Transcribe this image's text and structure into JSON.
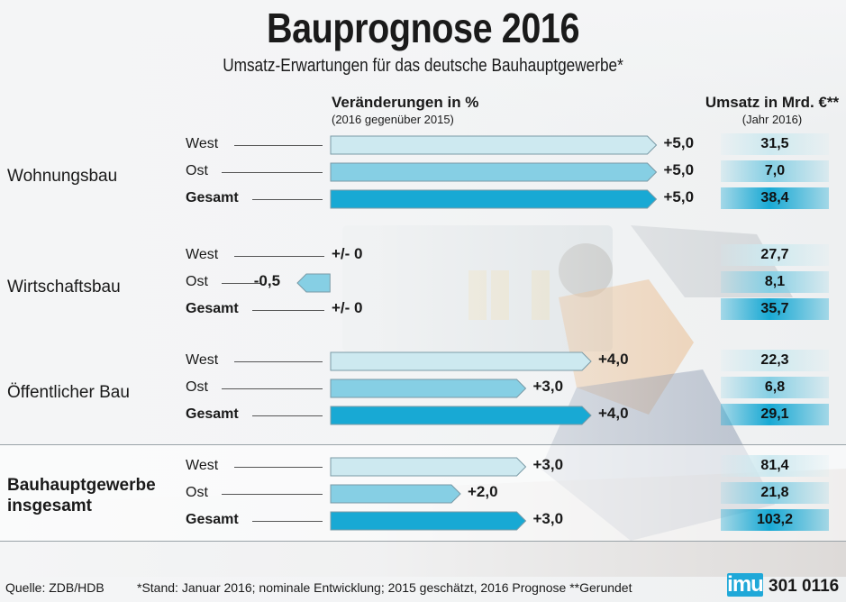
{
  "title": "Bauprognose 2016",
  "subtitle": "Umsatz-Erwartungen für das deutsche Bauhauptgewerbe*",
  "header_left": {
    "line1": "Veränderungen in %",
    "line2": "(2016 gegenüber 2015)"
  },
  "header_right": {
    "line1": "Umsatz in Mrd. €**",
    "line2": "(Jahr 2016)"
  },
  "colors": {
    "west": "#cde9f0",
    "ost": "#86cfe4",
    "gesamt": "#18a9d4",
    "stroke": "#7a9aa6"
  },
  "chart_data": {
    "type": "bar",
    "title": "Bauprognose 2016",
    "subtitle": "Umsatz-Erwartungen für das deutsche Bauhauptgewerbe*",
    "xlabel": "Veränderungen in %",
    "groups": [
      {
        "name": "Wohnungsbau",
        "rows": [
          {
            "label": "West",
            "value": 5.0,
            "display": "+5,0",
            "total": "31,5",
            "kind": "west"
          },
          {
            "label": "Ost",
            "value": 5.0,
            "display": "+5,0",
            "total": "7,0",
            "kind": "ost"
          },
          {
            "label": "Gesamt",
            "value": 5.0,
            "display": "+5,0",
            "total": "38,4",
            "kind": "gesamt"
          }
        ]
      },
      {
        "name": "Wirtschaftsbau",
        "rows": [
          {
            "label": "West",
            "value": 0,
            "display": "+/- 0",
            "total": "27,7",
            "kind": "west"
          },
          {
            "label": "Ost",
            "value": -0.5,
            "display": "-0,5",
            "total": "8,1",
            "kind": "ost"
          },
          {
            "label": "Gesamt",
            "value": 0,
            "display": "+/- 0",
            "total": "35,7",
            "kind": "gesamt"
          }
        ]
      },
      {
        "name": "Öffentlicher Bau",
        "rows": [
          {
            "label": "West",
            "value": 4.0,
            "display": "+4,0",
            "total": "22,3",
            "kind": "west"
          },
          {
            "label": "Ost",
            "value": 3.0,
            "display": "+3,0",
            "total": "6,8",
            "kind": "ost"
          },
          {
            "label": "Gesamt",
            "value": 4.0,
            "display": "+4,0",
            "total": "29,1",
            "kind": "gesamt"
          }
        ]
      },
      {
        "name": "Bauhauptgewerbe insgesamt",
        "rows": [
          {
            "label": "West",
            "value": 3.0,
            "display": "+3,0",
            "total": "81,4",
            "kind": "west"
          },
          {
            "label": "Ost",
            "value": 2.0,
            "display": "+2,0",
            "total": "21,8",
            "kind": "ost"
          },
          {
            "label": "Gesamt",
            "value": 3.0,
            "display": "+3,0",
            "total": "103,2",
            "kind": "gesamt"
          }
        ]
      }
    ]
  },
  "footer": {
    "source": "Quelle: ZDB/HDB",
    "note": "*Stand: Januar 2016; nominale Entwicklung; 2015 geschätzt, 2016 Prognose   **Gerundet",
    "logo": "imu",
    "code": "301 0116"
  }
}
